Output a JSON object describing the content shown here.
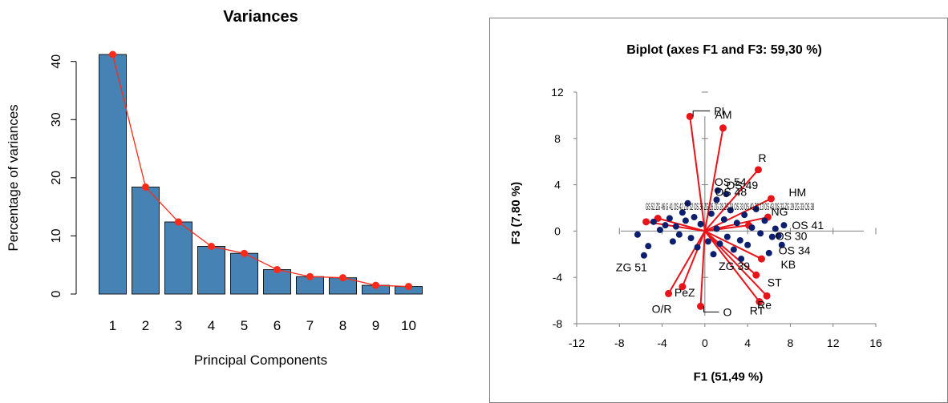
{
  "chart_data": [
    {
      "type": "bar",
      "title": "Variances",
      "xlabel": "Principal Components",
      "ylabel": "Percentage of variances",
      "categories": [
        "1",
        "2",
        "3",
        "4",
        "5",
        "6",
        "7",
        "8",
        "9",
        "10"
      ],
      "values": [
        41.2,
        18.4,
        12.4,
        8.2,
        7.0,
        4.2,
        3.0,
        2.8,
        1.5,
        1.3
      ],
      "line_values": [
        41.2,
        18.4,
        12.4,
        8.2,
        7.0,
        4.2,
        3.0,
        2.8,
        1.5,
        1.3
      ],
      "ylim": [
        0,
        41.2
      ],
      "yticks": [
        0,
        10,
        20,
        30,
        40
      ],
      "colors": {
        "bar": "#4682b4",
        "line": "#ff2a1a"
      }
    },
    {
      "type": "scatter",
      "title": "Biplot (axes F1 and F3: 59,30 %)",
      "xlabel": "F1 (51,49 %)",
      "ylabel": "F3 (7,80 %)",
      "xlim": [
        -12,
        16
      ],
      "ylim": [
        -8,
        12
      ],
      "xticks": [
        -12,
        -8,
        -4,
        0,
        4,
        8,
        12,
        16
      ],
      "yticks": [
        -8,
        -4,
        0,
        4,
        8,
        12
      ],
      "colors": {
        "vector": "#e8141a",
        "observation": "#0b1f6e"
      },
      "variables": [
        {
          "label": "PI",
          "x": -1.4,
          "y": 9.9
        },
        {
          "label": "AM",
          "x": 1.7,
          "y": 8.9
        },
        {
          "label": "R",
          "x": 5.0,
          "y": 5.3
        },
        {
          "label": "HM",
          "x": 6.2,
          "y": 2.8
        },
        {
          "label": "KB",
          "x": 5.3,
          "y": -2.4
        },
        {
          "label": "ST",
          "x": 4.8,
          "y": -3.8
        },
        {
          "label": "Re",
          "x": 5.8,
          "y": -5.6
        },
        {
          "label": "RT",
          "x": 5.1,
          "y": -6.1
        },
        {
          "label": "O",
          "x": -0.4,
          "y": -6.5
        },
        {
          "label": "O/R",
          "x": -3.4,
          "y": -5.4
        },
        {
          "label": "PeZ",
          "x": -2.1,
          "y": -4.8
        },
        {
          "label": "NG",
          "x": 5.9,
          "y": 1.2
        },
        {
          "label": "",
          "x": -4.4,
          "y": 1.1
        },
        {
          "label": "",
          "x": -5.5,
          "y": 0.8
        },
        {
          "label": "",
          "x": 4.1,
          "y": 0.5
        }
      ],
      "observations": [
        {
          "label": "OS 54",
          "x": 1.2,
          "y": 3.5
        },
        {
          "label": "OS 49",
          "x": 2.0,
          "y": 3.2
        },
        {
          "label": "OS 48",
          "x": 1.1,
          "y": 2.7
        },
        {
          "label": "OS 41",
          "x": 7.4,
          "y": 0.5
        },
        {
          "label": "OS 30",
          "x": 6.3,
          "y": -0.5
        },
        {
          "label": "OS 34",
          "x": 7.2,
          "y": -1.2
        },
        {
          "label": "ZG 51",
          "x": -5.7,
          "y": -2.1
        },
        {
          "label": "ZG 39",
          "x": 3.4,
          "y": -2.4
        },
        {
          "label": "",
          "x": -6.3,
          "y": -0.3
        },
        {
          "label": "",
          "x": -5.3,
          "y": -1.3
        },
        {
          "label": "",
          "x": -4.8,
          "y": 0.8
        },
        {
          "label": "",
          "x": -4.2,
          "y": 0.1
        },
        {
          "label": "",
          "x": -3.7,
          "y": 0.5
        },
        {
          "label": "",
          "x": -3.3,
          "y": 1.1
        },
        {
          "label": "",
          "x": -3.0,
          "y": -0.9
        },
        {
          "label": "",
          "x": -2.7,
          "y": 0.4
        },
        {
          "label": "",
          "x": -2.4,
          "y": -0.3
        },
        {
          "label": "",
          "x": -2.1,
          "y": 1.6
        },
        {
          "label": "",
          "x": -1.8,
          "y": 0.9
        },
        {
          "label": "",
          "x": -1.6,
          "y": 2.4
        },
        {
          "label": "",
          "x": -1.3,
          "y": -0.6
        },
        {
          "label": "",
          "x": -1.0,
          "y": 1.2
        },
        {
          "label": "",
          "x": -0.7,
          "y": -1.4
        },
        {
          "label": "",
          "x": -0.4,
          "y": 0.6
        },
        {
          "label": "",
          "x": 0.3,
          "y": -0.9
        },
        {
          "label": "",
          "x": 0.6,
          "y": 1.5
        },
        {
          "label": "",
          "x": 0.8,
          "y": -2.0
        },
        {
          "label": "",
          "x": 1.1,
          "y": 0.2
        },
        {
          "label": "",
          "x": 1.4,
          "y": -1.1
        },
        {
          "label": "",
          "x": 1.8,
          "y": 1.0
        },
        {
          "label": "",
          "x": 2.1,
          "y": -0.5
        },
        {
          "label": "",
          "x": 2.4,
          "y": 1.8
        },
        {
          "label": "",
          "x": 2.7,
          "y": -1.6
        },
        {
          "label": "",
          "x": 3.0,
          "y": 0.7
        },
        {
          "label": "",
          "x": 3.3,
          "y": -0.8
        },
        {
          "label": "",
          "x": 3.7,
          "y": 1.4
        },
        {
          "label": "",
          "x": 4.0,
          "y": -1.2
        },
        {
          "label": "",
          "x": 4.4,
          "y": 0.3
        },
        {
          "label": "",
          "x": 4.8,
          "y": 1.9
        },
        {
          "label": "",
          "x": 5.2,
          "y": -0.2
        },
        {
          "label": "",
          "x": 5.6,
          "y": 0.9
        },
        {
          "label": "",
          "x": 6.0,
          "y": -1.9
        },
        {
          "label": "",
          "x": 6.6,
          "y": 0.2
        },
        {
          "label": "",
          "x": 6.9,
          "y": -0.4
        }
      ],
      "clutter_text": "GS 52 ZG 46 G 41 OS 42 ZG 32 OS 36 ZG 26 ZG 28 ZG 19 OS 33 OS 40 ZG 13 OS 43 OS 32 ZG 29 ZG 33 OS 38"
    }
  ]
}
